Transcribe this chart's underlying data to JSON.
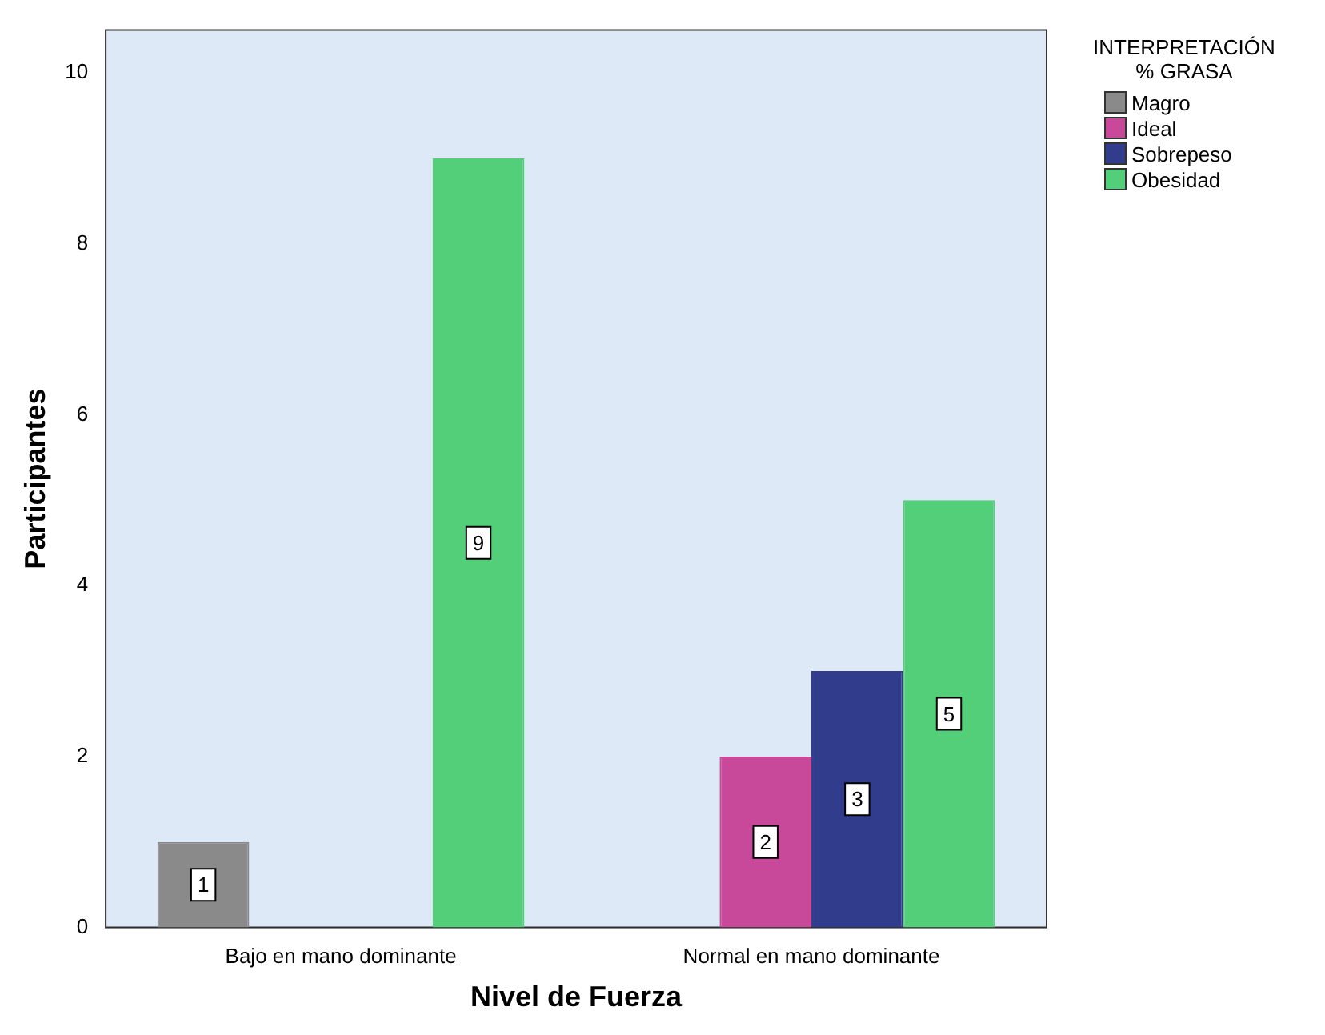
{
  "chart_data": {
    "type": "bar",
    "xlabel": "Nivel de Fuerza",
    "ylabel": "Participantes",
    "legend_title": "INTERPRETACIÓN % GRASA",
    "categories": [
      "Bajo en mano dominante",
      "Normal en mano dominante"
    ],
    "series": [
      {
        "name": "Magro",
        "color": "#8a8a8a",
        "values": [
          1,
          null
        ]
      },
      {
        "name": "Ideal",
        "color": "#c8489a",
        "values": [
          null,
          2
        ]
      },
      {
        "name": "Sobrepeso",
        "color": "#313c8c",
        "values": [
          null,
          3
        ]
      },
      {
        "name": "Obesidad",
        "color": "#52cf78",
        "values": [
          9,
          5
        ]
      }
    ],
    "ylim": [
      0,
      10.5
    ],
    "yticks": [
      0,
      2,
      4,
      6,
      8,
      10
    ],
    "grid": false,
    "legend": "top right",
    "data_labels": true
  }
}
